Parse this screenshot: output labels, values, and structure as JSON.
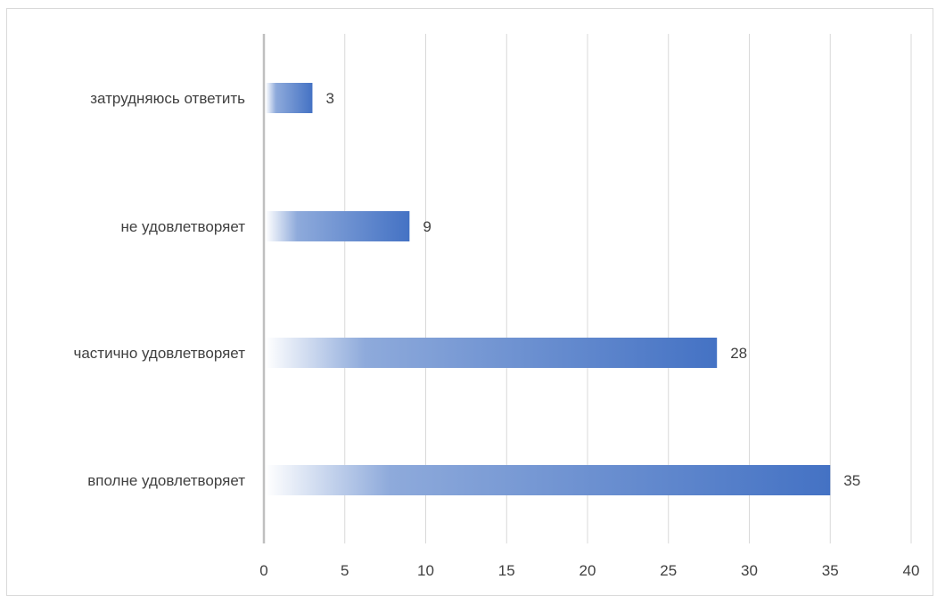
{
  "chart_data": {
    "type": "bar",
    "orientation": "horizontal",
    "categories": [
      "затрудняюсь ответить",
      "не удовлетворяет",
      "частично удовлетворяет",
      "вполне удовлетворяет"
    ],
    "values": [
      3,
      9,
      28,
      35
    ],
    "xlim": [
      0,
      40
    ],
    "x_ticks": [
      "0",
      "5",
      "10",
      "15",
      "20",
      "25",
      "30",
      "35",
      "40"
    ],
    "data_labels": [
      "3",
      "9",
      "28",
      "35"
    ],
    "grid": "vertical",
    "legend": "none",
    "bar_fill": "gradient",
    "colors": {
      "bar_start": "#ffffff",
      "bar_mid": "#8eaadb",
      "bar_end": "#4472c4",
      "gridline": "#d9d9d9",
      "axis": "#bfbfbf",
      "text": "#404040"
    }
  }
}
